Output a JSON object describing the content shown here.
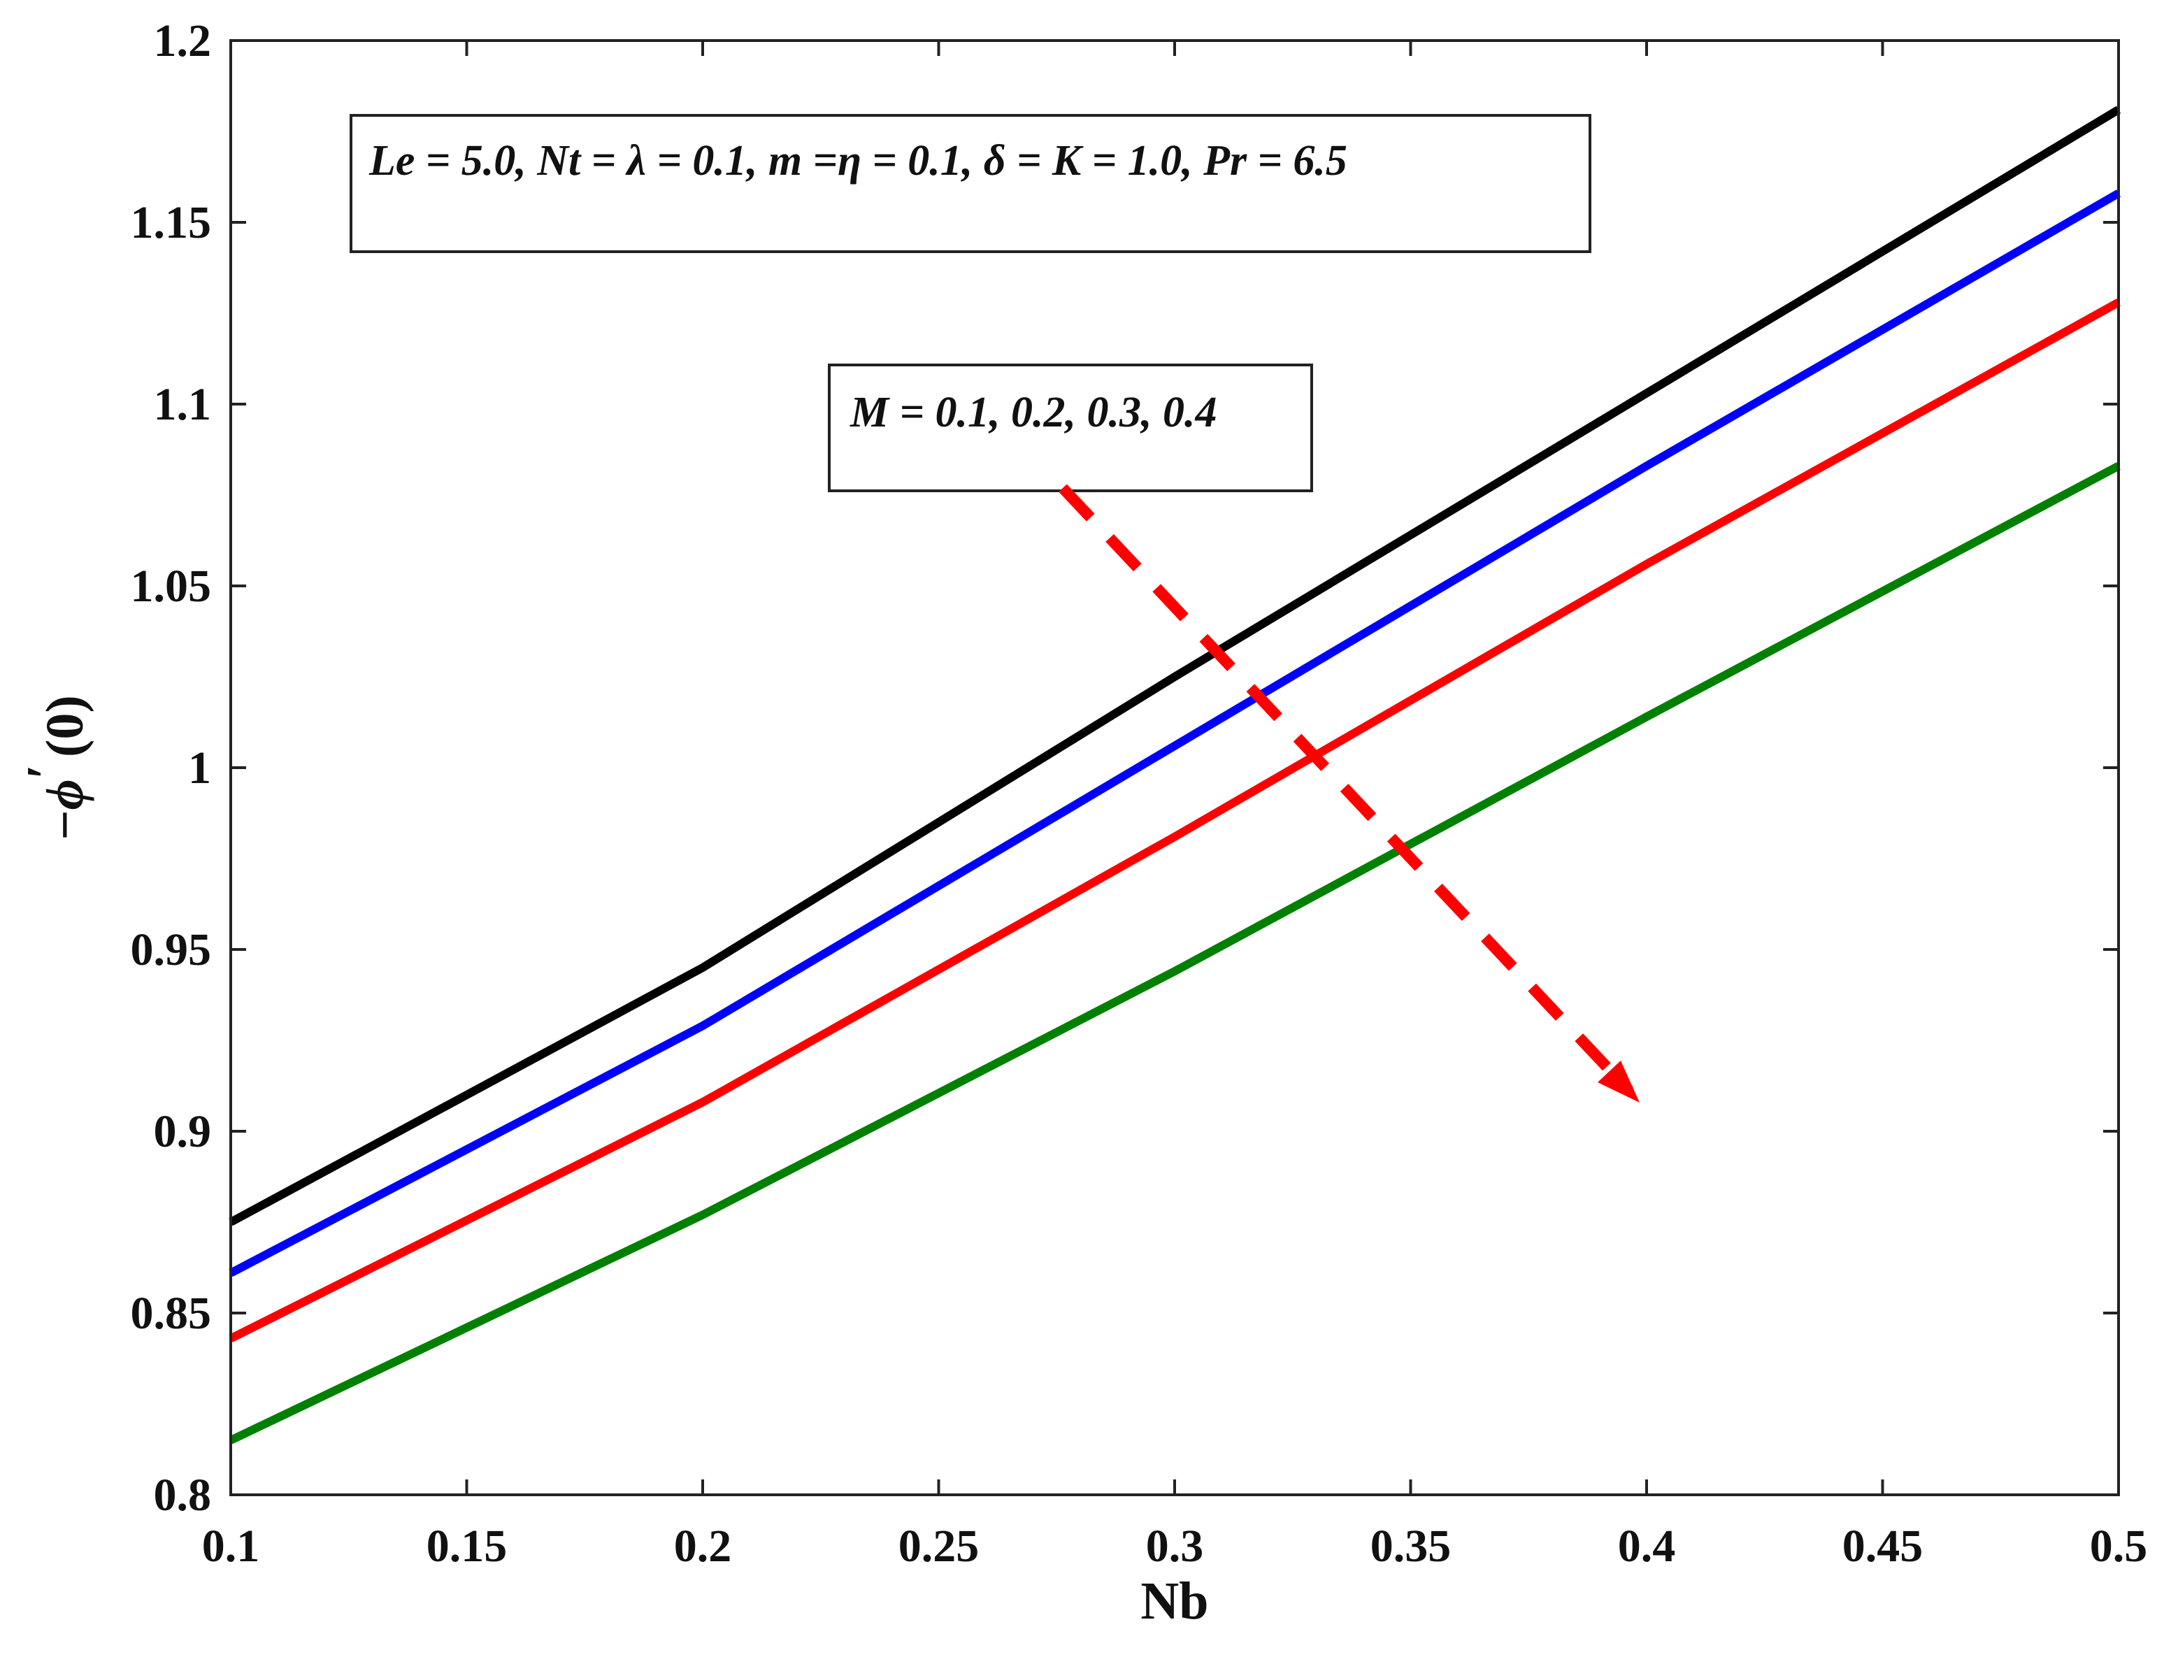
{
  "chart_data": {
    "type": "line",
    "xlabel": "Nb",
    "ylabel_parts": {
      "minus": "−",
      "symbol": "ϕ",
      "prime": "′",
      "arg": "(0)"
    },
    "xlim": [
      0.1,
      0.5
    ],
    "ylim": [
      0.8,
      1.2
    ],
    "x_ticks": [
      "0.1",
      "0.15",
      "0.2",
      "0.25",
      "0.3",
      "0.35",
      "0.4",
      "0.45",
      "0.5"
    ],
    "y_ticks": [
      "0.8",
      "0.85",
      "0.9",
      "0.95",
      "1",
      "1.05",
      "1.1",
      "1.15",
      "1.2"
    ],
    "grid": false,
    "x": [
      0.1,
      0.2,
      0.3,
      0.4,
      0.5
    ],
    "series": [
      {
        "color": "#000000",
        "values": [
          0.875,
          0.945,
          1.025,
          1.103,
          1.181
        ]
      },
      {
        "color": "#0000ff",
        "values": [
          0.861,
          0.929,
          1.006,
          1.083,
          1.158
        ]
      },
      {
        "color": "#ff0000",
        "values": [
          0.843,
          0.908,
          0.981,
          1.056,
          1.128
        ]
      },
      {
        "color": "#008000",
        "values": [
          0.815,
          0.877,
          0.944,
          1.014,
          1.083
        ]
      }
    ],
    "annotations": {
      "params": "Le = 5.0, Nt = λ = 0.1, m =η = 0.1, δ = K = 1.0, Pr = 6.5",
      "direction": "M = 0.1, 0.2, 0.3, 0.4",
      "arrow_color": "#ff0000"
    }
  }
}
